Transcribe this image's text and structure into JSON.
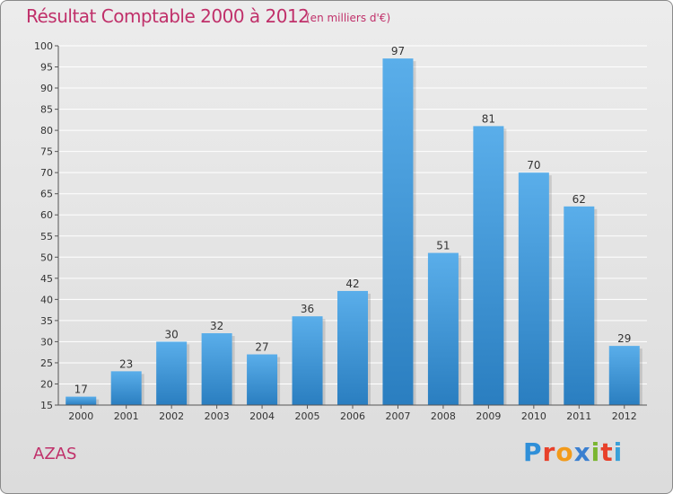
{
  "title": "Résultat Comptable 2000 à 2012",
  "subtitle": "(en milliers d'€)",
  "place": "AZAS",
  "logo": {
    "text": "Proxiti",
    "letters": [
      {
        "ch": "P",
        "color": "#2f8fd8"
      },
      {
        "ch": "r",
        "color": "#e8402a"
      },
      {
        "ch": "o",
        "color": "#f29a1a"
      },
      {
        "ch": "x",
        "color": "#3a7fd0"
      },
      {
        "ch": "i",
        "color": "#7ab631"
      },
      {
        "ch": "t",
        "color": "#e8402a"
      },
      {
        "ch": "i",
        "color": "#3aa0d8"
      }
    ]
  },
  "colors": {
    "title": "#c0306a",
    "bar_top": "#5aaeea",
    "bar_bottom": "#2a7ec0"
  },
  "chart_data": {
    "type": "bar",
    "title": "Résultat Comptable 2000 à 2012",
    "subtitle": "(en milliers d'€)",
    "xlabel": "",
    "ylabel": "",
    "categories": [
      "2000",
      "2001",
      "2002",
      "2003",
      "2004",
      "2005",
      "2006",
      "2007",
      "2008",
      "2009",
      "2010",
      "2011",
      "2012"
    ],
    "values": [
      17,
      23,
      30,
      32,
      27,
      36,
      42,
      97,
      51,
      81,
      70,
      62,
      29
    ],
    "ylim": [
      15,
      100
    ],
    "yticks": [
      15,
      20,
      25,
      30,
      35,
      40,
      45,
      50,
      55,
      60,
      65,
      70,
      75,
      80,
      85,
      90,
      95,
      100
    ],
    "grid": true,
    "legend": "none"
  }
}
